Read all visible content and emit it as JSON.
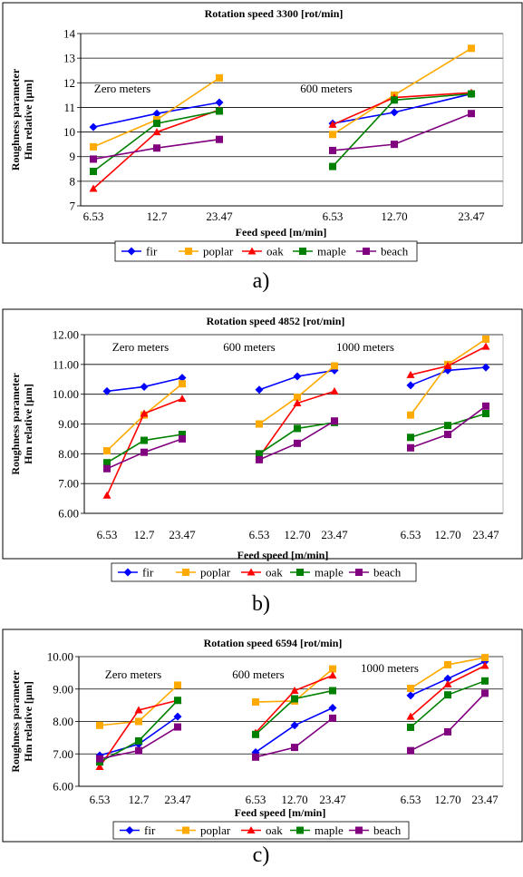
{
  "colors": {
    "fir": "#0000ff",
    "poplar": "#ffaa00",
    "oak": "#ff0000",
    "maple": "#008000",
    "beach": "#800080"
  },
  "chart_data": [
    {
      "type": "line",
      "panel_label": "a)",
      "title": "Rotation speed 3300 [rot/min]",
      "ylabel": [
        "Roughness parameter",
        "Hm relative [µm]"
      ],
      "xlabel": "Feed speed [m/min]",
      "ylim": [
        7,
        14
      ],
      "yticks": [
        "7",
        "8",
        "9",
        "10",
        "11",
        "12",
        "13",
        "14"
      ],
      "grid": true,
      "legend_position": "bottom",
      "groups": [
        {
          "label": "Zero meters",
          "x": [
            "6.53",
            "12.7",
            "23.47"
          ]
        },
        {
          "label": "600 meters",
          "x": [
            "6.53",
            "12.70",
            "23.47"
          ]
        }
      ],
      "series": [
        {
          "name": "fir",
          "marker": "diamond",
          "values": [
            [
              10.2,
              10.75,
              11.2
            ],
            [
              10.35,
              10.8,
              11.55
            ]
          ]
        },
        {
          "name": "poplar",
          "marker": "square",
          "values": [
            [
              9.4,
              10.5,
              12.2
            ],
            [
              9.9,
              11.5,
              13.4
            ]
          ]
        },
        {
          "name": "oak",
          "marker": "triangle",
          "values": [
            [
              7.7,
              10.0,
              10.9
            ],
            [
              10.3,
              11.4,
              11.6
            ]
          ]
        },
        {
          "name": "maple",
          "marker": "square",
          "values": [
            [
              8.4,
              10.35,
              10.85
            ],
            [
              8.6,
              11.3,
              11.55
            ]
          ]
        },
        {
          "name": "beach",
          "marker": "square",
          "values": [
            [
              8.9,
              9.35,
              9.7
            ],
            [
              9.25,
              9.5,
              10.75
            ]
          ]
        }
      ]
    },
    {
      "type": "line",
      "panel_label": "b)",
      "title": "Rotation speed 4852 [rot/min]",
      "ylabel": [
        "Roughness parameter",
        "Hm relative [µm]"
      ],
      "xlabel": "Feed speed [m/min]",
      "ylim": [
        6,
        12
      ],
      "yticks": [
        "6.00",
        "7.00",
        "8.00",
        "9.00",
        "10.00",
        "11.00",
        "12.00"
      ],
      "grid": true,
      "legend_position": "bottom",
      "groups": [
        {
          "label": "Zero meters",
          "x": [
            "6.53",
            "12.7",
            "23.47"
          ]
        },
        {
          "label": "600 meters",
          "x": [
            "6.53",
            "12.70",
            "23.47"
          ]
        },
        {
          "label": "1000 meters",
          "x": [
            "6.53",
            "12.70",
            "23.47"
          ]
        }
      ],
      "series": [
        {
          "name": "fir",
          "marker": "diamond",
          "values": [
            [
              10.1,
              10.25,
              10.55
            ],
            [
              10.15,
              10.6,
              10.8
            ],
            [
              10.3,
              10.8,
              10.9
            ]
          ]
        },
        {
          "name": "poplar",
          "marker": "square",
          "values": [
            [
              8.1,
              9.3,
              10.35
            ],
            [
              9.0,
              9.9,
              10.95
            ],
            [
              9.3,
              11.0,
              11.85
            ]
          ]
        },
        {
          "name": "oak",
          "marker": "triangle",
          "values": [
            [
              6.6,
              9.35,
              9.85
            ],
            [
              7.9,
              9.7,
              10.1
            ],
            [
              10.65,
              10.95,
              11.6
            ]
          ]
        },
        {
          "name": "maple",
          "marker": "square",
          "values": [
            [
              7.7,
              8.45,
              8.65
            ],
            [
              8.0,
              8.85,
              9.05
            ],
            [
              8.55,
              8.95,
              9.35
            ]
          ]
        },
        {
          "name": "beach",
          "marker": "square",
          "values": [
            [
              7.5,
              8.05,
              8.5
            ],
            [
              7.8,
              8.35,
              9.1
            ],
            [
              8.2,
              8.65,
              9.6
            ]
          ]
        }
      ]
    },
    {
      "type": "line",
      "panel_label": "c)",
      "title": "Rotation speed 6594 [rot/min]",
      "ylabel": [
        "Roughness parameter",
        "Hm relative [µm]"
      ],
      "xlabel": "Feed speed [m/min]",
      "ylim": [
        6,
        10
      ],
      "yticks": [
        "6.00",
        "7.00",
        "8.00",
        "9.00",
        "10.00"
      ],
      "grid": true,
      "legend_position": "bottom",
      "groups": [
        {
          "label": "Zero meters",
          "x": [
            "6.53",
            "12.7",
            "23.47"
          ]
        },
        {
          "label": "600 meters",
          "x": [
            "6.53",
            "12.70",
            "23.47"
          ]
        },
        {
          "label": "1000 meters",
          "x": [
            "6.53",
            "12.70",
            "23.47"
          ]
        }
      ],
      "series": [
        {
          "name": "fir",
          "marker": "diamond",
          "values": [
            [
              6.95,
              7.3,
              8.15
            ],
            [
              7.05,
              7.88,
              8.42
            ],
            [
              8.8,
              9.32,
              9.85
            ]
          ]
        },
        {
          "name": "poplar",
          "marker": "square",
          "values": [
            [
              7.88,
              8.0,
              9.12
            ],
            [
              8.6,
              8.63,
              9.62
            ],
            [
              9.02,
              9.75,
              9.97
            ]
          ]
        },
        {
          "name": "oak",
          "marker": "triangle",
          "values": [
            [
              6.6,
              8.35,
              8.65
            ],
            [
              7.65,
              8.95,
              9.42
            ],
            [
              8.15,
              9.15,
              9.72
            ]
          ]
        },
        {
          "name": "maple",
          "marker": "square",
          "values": [
            [
              6.75,
              7.4,
              8.65
            ],
            [
              7.6,
              8.7,
              8.95
            ],
            [
              7.82,
              8.82,
              9.25
            ]
          ]
        },
        {
          "name": "beach",
          "marker": "square",
          "values": [
            [
              6.85,
              7.1,
              7.83
            ],
            [
              6.9,
              7.2,
              8.1
            ],
            [
              7.1,
              7.68,
              8.87
            ]
          ]
        }
      ]
    }
  ]
}
